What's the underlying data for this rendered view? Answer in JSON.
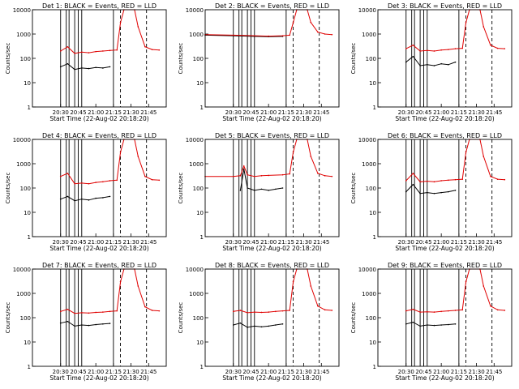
{
  "figure": {
    "xlabel": "Start Time (22-Aug-02 20:18:20)",
    "ylabel": "Counts/sec",
    "y_ticks": [
      1,
      10,
      100,
      1000,
      10000
    ],
    "y_tick_labels": [
      "1",
      "10",
      "100",
      "1000",
      "10000"
    ],
    "x_tick_labels": [
      "20:30",
      "20:45",
      "21:00",
      "21:15",
      "21:30",
      "21:45"
    ],
    "colors": {
      "events": "#000000",
      "lld": "#e00000",
      "axes": "#000000"
    }
  },
  "chart_data": [
    {
      "type": "line",
      "title": "Det 1: BLACK = Events, RED = LLD",
      "ylim": [
        1,
        10000
      ],
      "ylog": true,
      "series": [
        {
          "name": "Events",
          "points": [
            [
              20.5,
              45
            ],
            [
              20.6,
              60
            ],
            [
              20.7,
              35
            ],
            [
              20.8,
              40
            ],
            [
              20.9,
              38
            ],
            [
              21.0,
              42
            ],
            [
              21.1,
              40
            ],
            [
              21.2,
              45
            ]
          ]
        },
        {
          "name": "LLD",
          "points": [
            [
              20.5,
              200
            ],
            [
              20.6,
              300
            ],
            [
              20.7,
              160
            ],
            [
              20.8,
              180
            ],
            [
              20.9,
              170
            ],
            [
              21.0,
              190
            ],
            [
              21.1,
              200
            ],
            [
              21.2,
              210
            ],
            [
              21.3,
              220
            ],
            [
              21.35,
              3000
            ],
            [
              21.4,
              10000
            ],
            [
              21.55,
              10000
            ],
            [
              21.6,
              2000
            ],
            [
              21.7,
              300
            ],
            [
              21.8,
              230
            ],
            [
              21.9,
              220
            ]
          ]
        }
      ]
    },
    {
      "type": "line",
      "title": "Det 2: BLACK = Events, RED = LLD",
      "ylim": [
        1,
        10000
      ],
      "ylog": true,
      "series": [
        {
          "name": "Events",
          "points": [
            [
              20.1,
              900
            ],
            [
              20.5,
              850
            ],
            [
              20.8,
              800
            ],
            [
              21.0,
              780
            ],
            [
              21.2,
              800
            ]
          ]
        },
        {
          "name": "LLD",
          "points": [
            [
              20.1,
              950
            ],
            [
              20.5,
              900
            ],
            [
              20.8,
              850
            ],
            [
              21.0,
              820
            ],
            [
              21.2,
              850
            ],
            [
              21.3,
              900
            ],
            [
              21.35,
              3000
            ],
            [
              21.4,
              10000
            ],
            [
              21.55,
              10000
            ],
            [
              21.6,
              3000
            ],
            [
              21.7,
              1200
            ],
            [
              21.8,
              1000
            ],
            [
              21.9,
              950
            ]
          ]
        }
      ]
    },
    {
      "type": "line",
      "title": "Det 3: BLACK = Events, RED = LLD",
      "ylim": [
        1,
        10000
      ],
      "ylog": true,
      "series": [
        {
          "name": "Events",
          "points": [
            [
              20.5,
              70
            ],
            [
              20.6,
              120
            ],
            [
              20.7,
              50
            ],
            [
              20.8,
              55
            ],
            [
              20.9,
              50
            ],
            [
              21.0,
              60
            ],
            [
              21.1,
              55
            ],
            [
              21.2,
              70
            ]
          ]
        },
        {
          "name": "LLD",
          "points": [
            [
              20.5,
              250
            ],
            [
              20.6,
              350
            ],
            [
              20.7,
              200
            ],
            [
              20.8,
              210
            ],
            [
              20.9,
              200
            ],
            [
              21.0,
              220
            ],
            [
              21.1,
              230
            ],
            [
              21.2,
              250
            ],
            [
              21.3,
              260
            ],
            [
              21.35,
              3000
            ],
            [
              21.4,
              10000
            ],
            [
              21.55,
              10000
            ],
            [
              21.6,
              2000
            ],
            [
              21.7,
              350
            ],
            [
              21.8,
              260
            ],
            [
              21.9,
              250
            ]
          ]
        }
      ]
    },
    {
      "type": "line",
      "title": "Det 4: BLACK = Events, RED = LLD",
      "ylim": [
        1,
        10000
      ],
      "ylog": true,
      "series": [
        {
          "name": "Events",
          "points": [
            [
              20.5,
              35
            ],
            [
              20.6,
              45
            ],
            [
              20.7,
              30
            ],
            [
              20.8,
              35
            ],
            [
              20.9,
              32
            ],
            [
              21.0,
              38
            ],
            [
              21.1,
              40
            ],
            [
              21.2,
              45
            ]
          ]
        },
        {
          "name": "LLD",
          "points": [
            [
              20.5,
              300
            ],
            [
              20.6,
              400
            ],
            [
              20.7,
              150
            ],
            [
              20.8,
              160
            ],
            [
              20.9,
              150
            ],
            [
              21.0,
              170
            ],
            [
              21.1,
              180
            ],
            [
              21.2,
              200
            ],
            [
              21.3,
              210
            ],
            [
              21.35,
              3000
            ],
            [
              21.4,
              10000
            ],
            [
              21.55,
              10000
            ],
            [
              21.6,
              2000
            ],
            [
              21.7,
              300
            ],
            [
              21.8,
              220
            ],
            [
              21.9,
              210
            ]
          ]
        }
      ]
    },
    {
      "type": "line",
      "title": "Det 5: BLACK = Events, RED = LLD",
      "ylim": [
        1,
        10000
      ],
      "ylog": true,
      "series": [
        {
          "name": "Events",
          "points": [
            [
              20.6,
              80
            ],
            [
              20.65,
              600
            ],
            [
              20.7,
              100
            ],
            [
              20.8,
              80
            ],
            [
              20.9,
              90
            ],
            [
              21.0,
              80
            ],
            [
              21.1,
              90
            ],
            [
              21.2,
              100
            ]
          ]
        },
        {
          "name": "LLD",
          "points": [
            [
              20.1,
              300
            ],
            [
              20.5,
              300
            ],
            [
              20.6,
              320
            ],
            [
              20.65,
              800
            ],
            [
              20.7,
              350
            ],
            [
              20.8,
              300
            ],
            [
              20.9,
              320
            ],
            [
              21.0,
              330
            ],
            [
              21.2,
              350
            ],
            [
              21.3,
              380
            ],
            [
              21.35,
              3000
            ],
            [
              21.4,
              10000
            ],
            [
              21.55,
              10000
            ],
            [
              21.6,
              2000
            ],
            [
              21.7,
              400
            ],
            [
              21.8,
              320
            ],
            [
              21.9,
              300
            ]
          ]
        }
      ]
    },
    {
      "type": "line",
      "title": "Det 6: BLACK = Events, RED = LLD",
      "ylim": [
        1,
        10000
      ],
      "ylog": true,
      "series": [
        {
          "name": "Events",
          "points": [
            [
              20.5,
              70
            ],
            [
              20.6,
              140
            ],
            [
              20.7,
              60
            ],
            [
              20.8,
              65
            ],
            [
              20.9,
              60
            ],
            [
              21.0,
              65
            ],
            [
              21.1,
              70
            ],
            [
              21.2,
              80
            ]
          ]
        },
        {
          "name": "LLD",
          "points": [
            [
              20.5,
              200
            ],
            [
              20.6,
              400
            ],
            [
              20.7,
              180
            ],
            [
              20.8,
              190
            ],
            [
              20.9,
              180
            ],
            [
              21.0,
              200
            ],
            [
              21.1,
              210
            ],
            [
              21.2,
              220
            ],
            [
              21.3,
              230
            ],
            [
              21.35,
              3000
            ],
            [
              21.4,
              10000
            ],
            [
              21.55,
              10000
            ],
            [
              21.6,
              2000
            ],
            [
              21.7,
              300
            ],
            [
              21.8,
              230
            ],
            [
              21.9,
              220
            ]
          ]
        }
      ]
    },
    {
      "type": "line",
      "title": "Det 7: BLACK = Events, RED = LLD",
      "ylim": [
        1,
        10000
      ],
      "ylog": true,
      "series": [
        {
          "name": "Events",
          "points": [
            [
              20.5,
              60
            ],
            [
              20.6,
              70
            ],
            [
              20.7,
              45
            ],
            [
              20.8,
              50
            ],
            [
              20.9,
              48
            ],
            [
              21.0,
              52
            ],
            [
              21.1,
              55
            ],
            [
              21.2,
              58
            ]
          ]
        },
        {
          "name": "LLD",
          "points": [
            [
              20.5,
              180
            ],
            [
              20.6,
              220
            ],
            [
              20.7,
              150
            ],
            [
              20.8,
              160
            ],
            [
              20.9,
              155
            ],
            [
              21.0,
              165
            ],
            [
              21.1,
              170
            ],
            [
              21.2,
              180
            ],
            [
              21.3,
              190
            ],
            [
              21.35,
              3000
            ],
            [
              21.4,
              10000
            ],
            [
              21.55,
              10000
            ],
            [
              21.6,
              2000
            ],
            [
              21.7,
              280
            ],
            [
              21.8,
              200
            ],
            [
              21.9,
              190
            ]
          ]
        }
      ]
    },
    {
      "type": "line",
      "title": "Det 8: BLACK = Events, RED = LLD",
      "ylim": [
        1,
        10000
      ],
      "ylog": true,
      "series": [
        {
          "name": "Events",
          "points": [
            [
              20.5,
              50
            ],
            [
              20.6,
              60
            ],
            [
              20.7,
              40
            ],
            [
              20.8,
              45
            ],
            [
              20.9,
              42
            ],
            [
              21.0,
              45
            ],
            [
              21.1,
              50
            ],
            [
              21.2,
              55
            ]
          ]
        },
        {
          "name": "LLD",
          "points": [
            [
              20.5,
              180
            ],
            [
              20.6,
              200
            ],
            [
              20.7,
              160
            ],
            [
              20.8,
              170
            ],
            [
              20.9,
              165
            ],
            [
              21.0,
              170
            ],
            [
              21.1,
              180
            ],
            [
              21.2,
              190
            ],
            [
              21.3,
              200
            ],
            [
              21.35,
              3000
            ],
            [
              21.4,
              10000
            ],
            [
              21.55,
              10000
            ],
            [
              21.6,
              2000
            ],
            [
              21.7,
              300
            ],
            [
              21.8,
              210
            ],
            [
              21.9,
              200
            ]
          ]
        }
      ]
    },
    {
      "type": "line",
      "title": "Det 9: BLACK = Events, RED = LLD",
      "ylim": [
        1,
        10000
      ],
      "ylog": true,
      "series": [
        {
          "name": "Events",
          "points": [
            [
              20.5,
              55
            ],
            [
              20.6,
              65
            ],
            [
              20.7,
              45
            ],
            [
              20.8,
              50
            ],
            [
              20.9,
              48
            ],
            [
              21.0,
              50
            ],
            [
              21.1,
              52
            ],
            [
              21.2,
              55
            ]
          ]
        },
        {
          "name": "LLD",
          "points": [
            [
              20.5,
              190
            ],
            [
              20.6,
              220
            ],
            [
              20.7,
              170
            ],
            [
              20.8,
              175
            ],
            [
              20.9,
              170
            ],
            [
              21.0,
              180
            ],
            [
              21.1,
              190
            ],
            [
              21.2,
              200
            ],
            [
              21.3,
              210
            ],
            [
              21.35,
              3000
            ],
            [
              21.4,
              10000
            ],
            [
              21.55,
              10000
            ],
            [
              21.6,
              2000
            ],
            [
              21.7,
              300
            ],
            [
              21.8,
              210
            ],
            [
              21.9,
              200
            ]
          ]
        }
      ]
    }
  ]
}
